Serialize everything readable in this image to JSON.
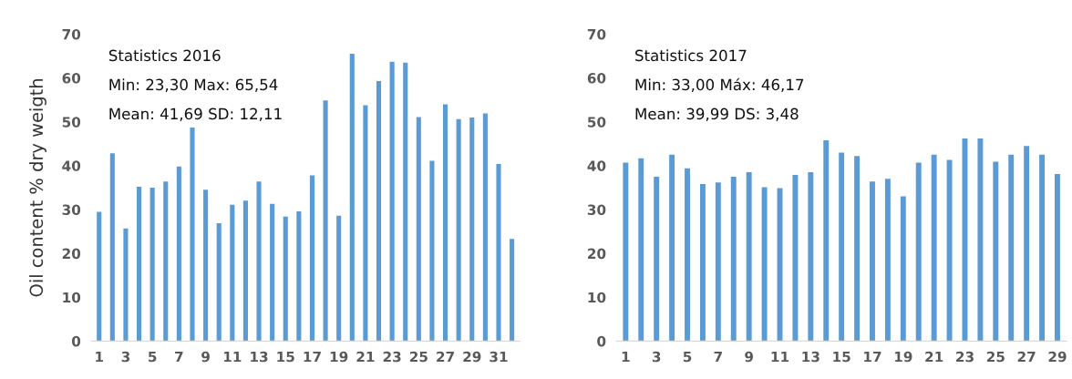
{
  "chart_data": [
    {
      "type": "bar",
      "ylabel": "Oil content % dry weigth",
      "annotations": [
        "Statistics 2016",
        "Min: 23,30 Max: 65,54",
        "Mean: 41,69 SD: 12,11"
      ],
      "categories": [
        "1",
        null,
        "3",
        null,
        "5",
        null,
        "7",
        null,
        "9",
        null,
        "11",
        null,
        "13",
        null,
        "15",
        null,
        "17",
        null,
        "19",
        null,
        "21",
        null,
        "23",
        null,
        "25",
        null,
        "27",
        null,
        "29",
        null,
        "31",
        null
      ],
      "values": [
        29.5,
        42.8,
        25.7,
        35.2,
        35.0,
        36.4,
        39.8,
        48.7,
        34.5,
        26.9,
        31.1,
        32.0,
        36.4,
        31.3,
        28.4,
        29.6,
        37.8,
        54.9,
        28.6,
        65.5,
        53.8,
        59.3,
        63.7,
        63.5,
        51.1,
        41.1,
        54.0,
        50.6,
        51.0,
        51.9,
        40.4,
        23.3
      ],
      "color": "#5b9bd5",
      "ylim": [
        0,
        70
      ],
      "yticks": [
        0,
        10,
        20,
        30,
        40,
        50,
        60,
        70
      ],
      "grid": false
    },
    {
      "type": "bar",
      "annotations": [
        "Statistics 2017",
        "Min: 33,00 Máx: 46,17",
        "Mean: 39,99 DS: 3,48"
      ],
      "categories": [
        "1",
        null,
        "3",
        null,
        "5",
        null,
        "7",
        null,
        "9",
        null,
        "11",
        null,
        "13",
        null,
        "15",
        null,
        "17",
        null,
        "19",
        null,
        "21",
        null,
        "23",
        null,
        "25",
        null,
        "27",
        null,
        "29"
      ],
      "values": [
        40.7,
        41.7,
        37.5,
        42.5,
        39.4,
        35.8,
        36.2,
        37.5,
        38.5,
        35.1,
        34.9,
        37.9,
        38.5,
        45.8,
        43.0,
        42.2,
        36.4,
        37.0,
        33.0,
        40.7,
        42.5,
        41.3,
        46.2,
        46.2,
        40.9,
        42.5,
        44.5,
        42.5,
        38.1
      ],
      "color": "#5b9bd5",
      "ylim": [
        0,
        70
      ],
      "yticks": [
        0,
        10,
        20,
        30,
        40,
        50,
        60,
        70
      ],
      "grid": false
    }
  ]
}
